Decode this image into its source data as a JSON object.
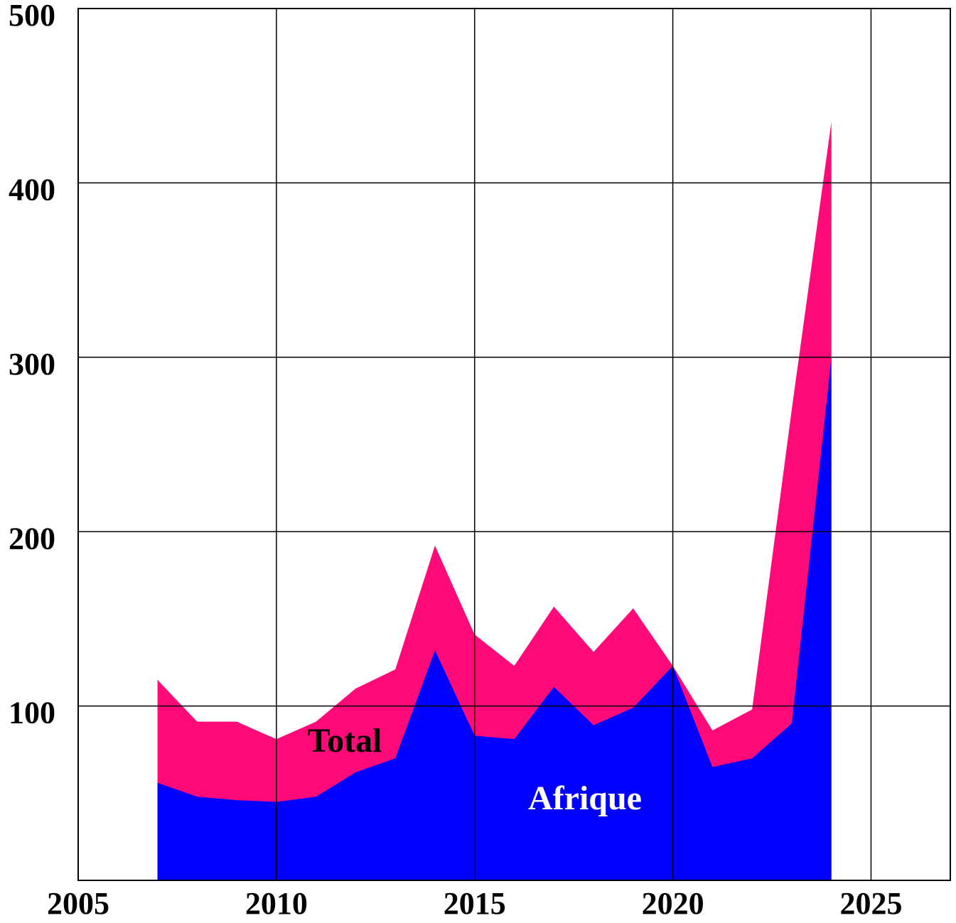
{
  "chart_data": {
    "type": "area",
    "x": [
      2007,
      2008,
      2009,
      2010,
      2011,
      2012,
      2013,
      2014,
      2015,
      2016,
      2017,
      2018,
      2019,
      2020,
      2021,
      2022,
      2023,
      2024
    ],
    "series": [
      {
        "name": "Total",
        "color": "#ff0a78",
        "label_color": "#000000",
        "values": [
          115,
          91,
          91,
          81,
          91,
          110,
          121,
          192,
          141,
          123,
          157,
          131,
          156,
          123,
          86,
          98,
          270,
          435
        ]
      },
      {
        "name": "Afrique",
        "color": "#0000ff",
        "label_color": "#ffffff",
        "values": [
          56,
          48,
          46,
          45,
          48,
          62,
          70,
          132,
          83,
          81,
          111,
          89,
          99,
          123,
          65,
          70,
          90,
          300
        ]
      }
    ],
    "xlim": [
      2005,
      2027
    ],
    "xticks": [
      2005,
      2010,
      2015,
      2020,
      2025
    ],
    "ylim": [
      0,
      500
    ],
    "yticks": [
      100,
      200,
      300,
      400,
      500
    ],
    "grid": true
  }
}
